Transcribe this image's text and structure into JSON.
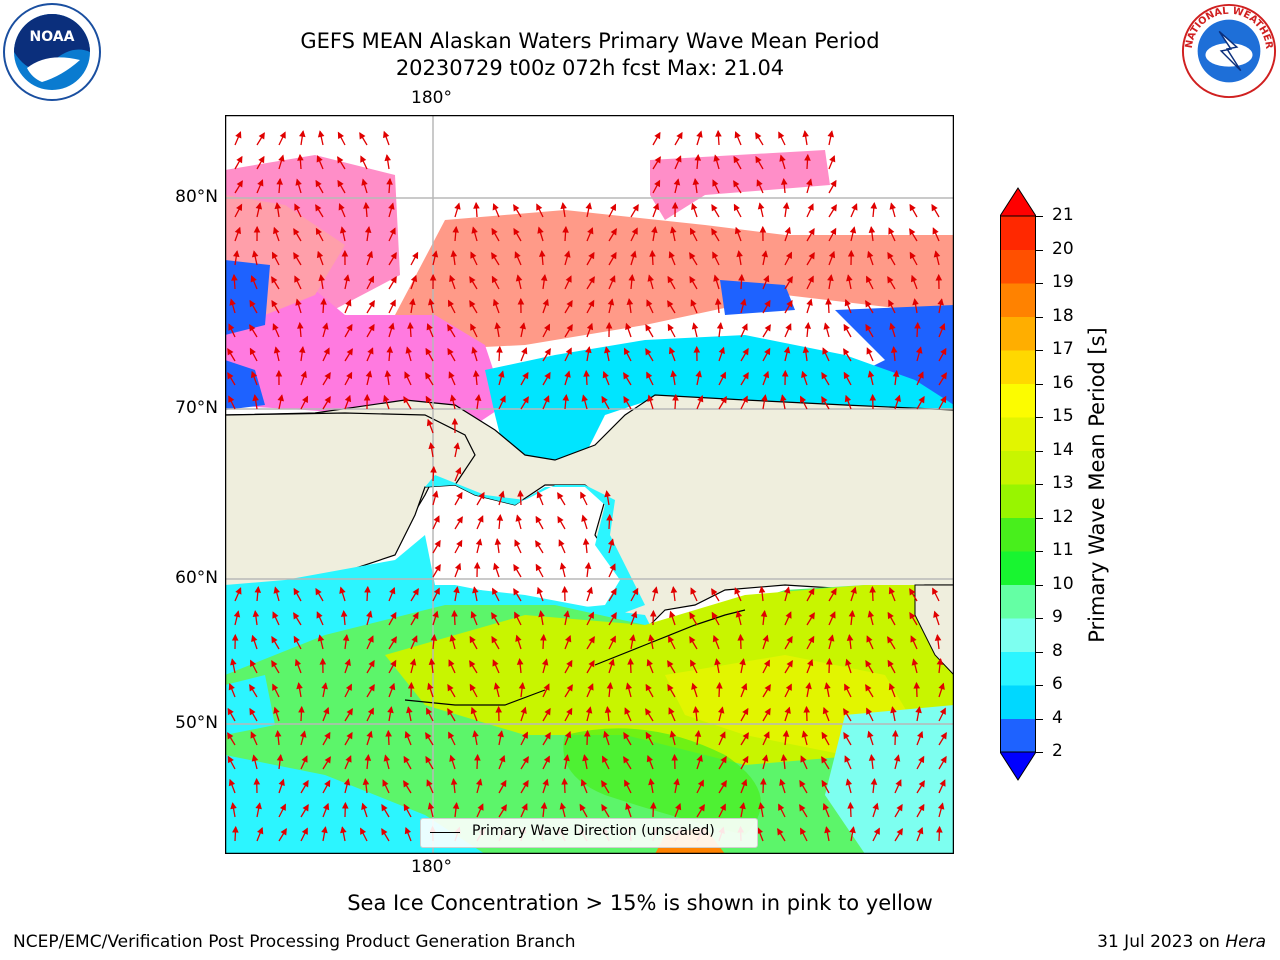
{
  "title": {
    "line1": "GEFS MEAN Alaskan Waters Primary Wave Mean Period",
    "line2": "20230729 t00z 072h fcst   Max: 21.04"
  },
  "logos": {
    "left": {
      "text": "NOAA",
      "icon": "noaa-logo-icon"
    },
    "right": {
      "text": "NATIONAL WEATHER SERVICE",
      "icon": "nws-logo-icon"
    }
  },
  "map": {
    "lon_label_top": "180°",
    "lon_label_bottom": "180°",
    "lat_labels": [
      "80°N",
      "70°N",
      "60°N",
      "50°N"
    ],
    "legend_label": "Primary Wave Direction (unscaled)"
  },
  "colorbar": {
    "label": "Primary Wave Mean Period [s]",
    "ticks": [
      "2",
      "4",
      "6",
      "8",
      "9",
      "10",
      "11",
      "12",
      "13",
      "14",
      "15",
      "16",
      "17",
      "18",
      "19",
      "20",
      "21"
    ],
    "colors": [
      "#1e62ff",
      "#00d8ff",
      "#2cf5ff",
      "#7dfff0",
      "#64ffa4",
      "#18f530",
      "#48ef1c",
      "#98f500",
      "#c8f500",
      "#e2f500",
      "#fcfc00",
      "#ffd800",
      "#ffae00",
      "#ff8200",
      "#ff5000",
      "#ff2800"
    ],
    "under_color": "#0000ff",
    "over_color": "#ff0000"
  },
  "caption": "Sea Ice Concentration > 15% is shown in pink to yellow",
  "footer": {
    "left": "NCEP/EMC/Verification Post Processing Product Generation Branch",
    "right_date": "31 Jul 2023 on ",
    "right_machine": "Hera"
  }
}
